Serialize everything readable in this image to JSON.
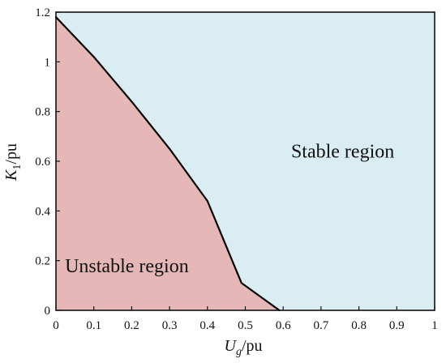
{
  "chart_data": {
    "type": "area",
    "title": "",
    "xlabel": {
      "main": "U",
      "sub": "g",
      "unit": "/pu"
    },
    "ylabel": {
      "main": "K",
      "sub": "1",
      "unit": "/pu"
    },
    "xlim": [
      0,
      1
    ],
    "ylim": [
      0,
      1.2
    ],
    "x_ticks": [
      0,
      0.1,
      0.2,
      0.3,
      0.4,
      0.5,
      0.6,
      0.7,
      0.8,
      0.9,
      1
    ],
    "x_tick_labels": [
      "0",
      "0.1",
      "0.2",
      "0.3",
      "0.4",
      "0.5",
      "0.6",
      "0.7",
      "0.8",
      "0.9",
      "1"
    ],
    "y_ticks": [
      0,
      0.2,
      0.4,
      0.6,
      0.8,
      1,
      1.2
    ],
    "y_tick_labels": [
      "0",
      "0.2",
      "0.4",
      "0.6",
      "0.8",
      "1",
      "1.2"
    ],
    "grid": false,
    "legend": "none",
    "boundary": {
      "x": [
        0,
        0.1,
        0.2,
        0.3,
        0.4,
        0.49,
        0.59
      ],
      "y": [
        1.18,
        1.02,
        0.84,
        0.65,
        0.44,
        0.11,
        0
      ]
    },
    "regions": [
      {
        "name": "Unstable region",
        "color": "#e5b8b7",
        "side": "below"
      },
      {
        "name": "Stable region",
        "color": "#daedf3",
        "side": "above"
      }
    ],
    "annotations": [
      {
        "text": "Stable region",
        "x": 0.8,
        "y": 0.64
      },
      {
        "text": "Unstable region",
        "x": 0.2,
        "y": 0.18
      }
    ],
    "colors": {
      "boundary": "#000000",
      "frame": "#111111"
    }
  }
}
